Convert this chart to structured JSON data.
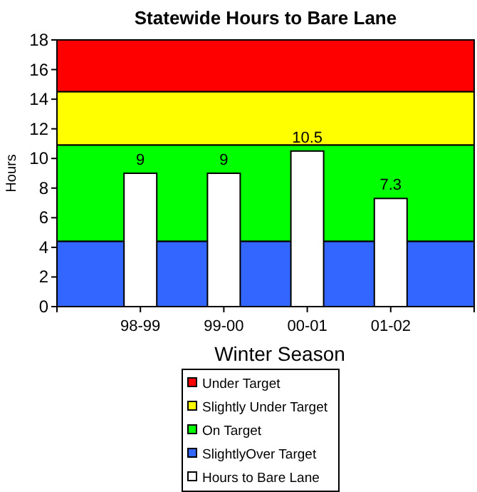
{
  "chart_data": {
    "type": "bar",
    "title": "Statewide Hours to Bare Lane",
    "xlabel": "Winter Season",
    "ylabel": "Hours",
    "categories": [
      null,
      "98-99",
      "99-00",
      "00-01",
      "01-02",
      null
    ],
    "series": [
      {
        "name": "Hours to Bare Lane",
        "color": "#ffffff",
        "values": [
          null,
          9,
          9,
          10.5,
          7.3,
          null
        ]
      }
    ],
    "ylim": [
      0,
      18
    ],
    "yticks": [
      0,
      2,
      4,
      6,
      8,
      10,
      12,
      14,
      16,
      18
    ],
    "bands": [
      {
        "axis": "y",
        "from": 14.5,
        "to": 18,
        "label": "Under Target",
        "color": "#ff0000"
      },
      {
        "axis": "y",
        "from": 10.9,
        "to": 14.5,
        "label": "Slightly Under Target",
        "color": "#ffff00"
      },
      {
        "axis": "y",
        "from": 4.4,
        "to": 10.9,
        "label": "On Target",
        "color": "#00ff00"
      },
      {
        "axis": "y",
        "from": 0,
        "to": 4.4,
        "label": "SlightlyOver Target",
        "color": "#3366ff"
      }
    ],
    "data_labels": true,
    "legend": "bottom",
    "grid": false
  }
}
